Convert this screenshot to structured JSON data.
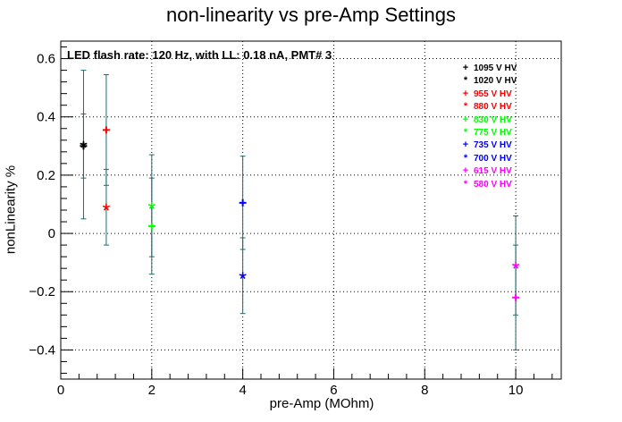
{
  "chart_data": {
    "type": "scatter",
    "title": "non-linearity vs pre-Amp Settings",
    "xlabel": "pre-Amp (MOhm)",
    "ylabel": "nonLinearity %",
    "annotation": "LED flash rate: 120 Hz, with LL: 0.18 nA, PMT# 3",
    "xlim": [
      0,
      11
    ],
    "ylim": [
      -0.5,
      0.66
    ],
    "xticks": [
      0,
      2,
      4,
      6,
      8,
      10
    ],
    "yticks": [
      -0.4,
      -0.2,
      0,
      0.2,
      0.4,
      0.6
    ],
    "xtick_labels": [
      "0",
      "2",
      "4",
      "6",
      "8",
      "10"
    ],
    "ytick_labels": [
      "−0.4",
      "−0.2",
      "0",
      "0.2",
      "0.4",
      "0.6"
    ],
    "grid": true,
    "legend_position": "top-right",
    "error_bar_color": "#1e6b6b",
    "series": [
      {
        "name": "1095 V HV",
        "color": "#000000",
        "marker": "+",
        "x": [
          0.5
        ],
        "y": [
          0.3
        ],
        "err": [
          0.11
        ]
      },
      {
        "name": "1020 V HV",
        "color": "#000000",
        "marker": "*",
        "x": [
          0.5
        ],
        "y": [
          0.305
        ],
        "err": [
          0.255
        ]
      },
      {
        "name": "955 V HV",
        "color": "#ff0000",
        "marker": "+",
        "x": [
          1
        ],
        "y": [
          0.355
        ],
        "err": [
          0.19
        ]
      },
      {
        "name": "880 V HV",
        "color": "#ff0000",
        "marker": "*",
        "x": [
          1
        ],
        "y": [
          0.09
        ],
        "err": [
          0.13
        ]
      },
      {
        "name": "830 V HV",
        "color": "#00ff00",
        "marker": "+",
        "x": [
          2
        ],
        "y": [
          0.025
        ],
        "err": [
          0.165
        ]
      },
      {
        "name": "775 V HV",
        "color": "#00ff00",
        "marker": "*",
        "x": [
          2
        ],
        "y": [
          0.095
        ],
        "err": [
          0.175
        ]
      },
      {
        "name": "735 V HV",
        "color": "#0000ff",
        "marker": "+",
        "x": [
          4
        ],
        "y": [
          0.105
        ],
        "err": [
          0.16
        ]
      },
      {
        "name": "700 V HV",
        "color": "#0000ff",
        "marker": "*",
        "x": [
          4
        ],
        "y": [
          -0.145
        ],
        "err": [
          0.13
        ]
      },
      {
        "name": "615 V HV",
        "color": "#ff00ff",
        "marker": "+",
        "x": [
          10
        ],
        "y": [
          -0.22
        ],
        "err": [
          0.18
        ]
      },
      {
        "name": "580 V HV",
        "color": "#ff00ff",
        "marker": "*",
        "x": [
          10
        ],
        "y": [
          -0.11
        ],
        "err": [
          0.17
        ]
      }
    ]
  }
}
